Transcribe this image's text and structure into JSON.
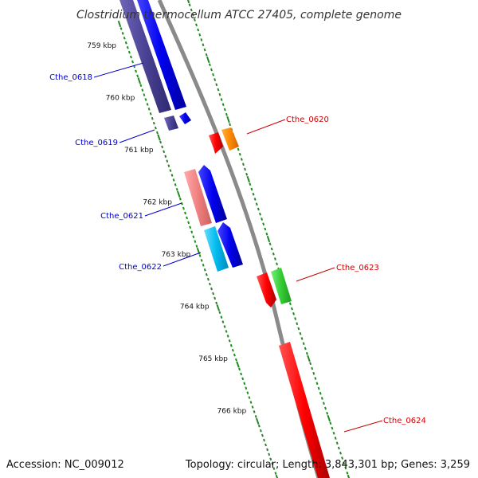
{
  "title": "Clostridium thermocellum ATCC 27405, complete genome",
  "footer": {
    "accession": "Accession: NC_009012",
    "summary": "Topology: circular; Length: 3,843,301 bp; Genes: 3,259"
  },
  "colors": {
    "backbone": "#8a8a8a",
    "tick": "#228822",
    "label_left": "#0000cc",
    "label_right": "#cc0000"
  },
  "ticks": [
    "759 kbp",
    "760 kbp",
    "761 kbp",
    "762 kbp",
    "763 kbp",
    "764 kbp",
    "765 kbp",
    "766 kbp"
  ],
  "genes": [
    {
      "name": "Cthe_0618",
      "strand": "left"
    },
    {
      "name": "Cthe_0619",
      "strand": "left"
    },
    {
      "name": "Cthe_0620",
      "strand": "right"
    },
    {
      "name": "Cthe_0621",
      "strand": "left"
    },
    {
      "name": "Cthe_0622",
      "strand": "left"
    },
    {
      "name": "Cthe_0623",
      "strand": "right"
    },
    {
      "name": "Cthe_0624",
      "strand": "right"
    }
  ]
}
